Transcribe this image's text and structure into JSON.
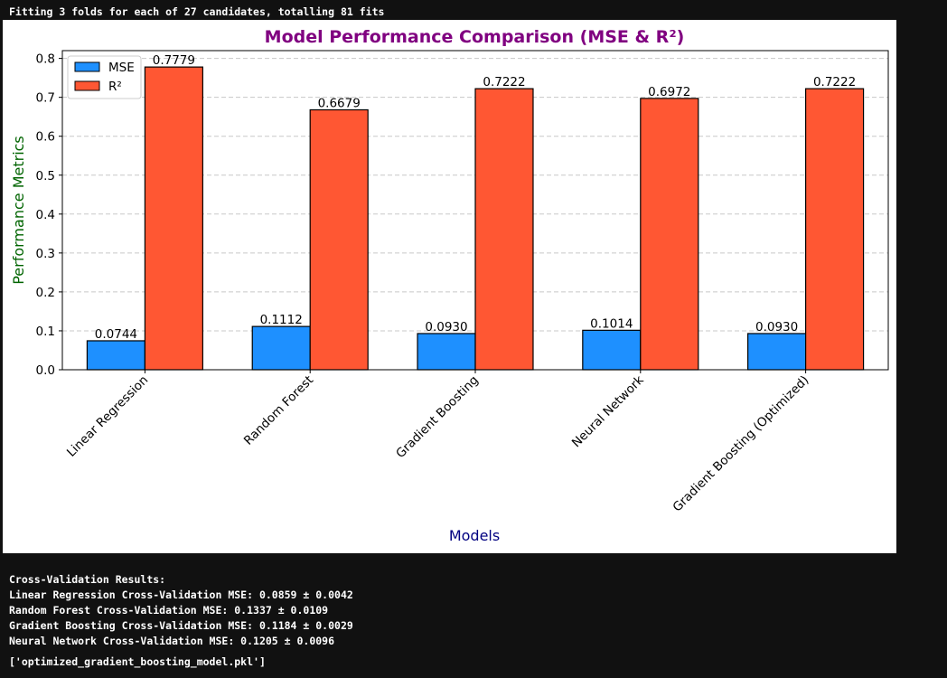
{
  "console": {
    "top_line": "Fitting 3 folds for each of 27 candidates, totalling 81 fits",
    "cv_lines": [
      "Cross-Validation Results:",
      "Linear Regression Cross-Validation MSE: 0.0859 ± 0.0042",
      "Random Forest Cross-Validation MSE: 0.1337 ± 0.0109",
      "Gradient Boosting Cross-Validation MSE: 0.1184 ± 0.0029",
      "Neural Network Cross-Validation MSE: 0.1205 ± 0.0096"
    ],
    "output_line": "['optimized_gradient_boosting_model.pkl']"
  },
  "chart_data": {
    "type": "bar",
    "title": "Model Performance Comparison (MSE & R²)",
    "xlabel": "Models",
    "ylabel": "Performance Metrics",
    "categories": [
      "Linear Regression",
      "Random Forest",
      "Gradient Boosting",
      "Neural Network",
      "Gradient Boosting (Optimized)"
    ],
    "series": [
      {
        "name": "MSE",
        "values": [
          0.0744,
          0.1112,
          0.093,
          0.1014,
          0.093
        ],
        "labels": [
          "0.0744",
          "0.1112",
          "0.0930",
          "0.1014",
          "0.0930"
        ],
        "color": "#1e90ff"
      },
      {
        "name": "R²",
        "values": [
          0.7779,
          0.6679,
          0.7222,
          0.6972,
          0.7222
        ],
        "labels": [
          "0.7779",
          "0.6679",
          "0.7222",
          "0.6972",
          "0.7222"
        ],
        "color": "#ff5733"
      }
    ],
    "ylim": [
      0,
      0.82
    ],
    "yticks": [
      0.0,
      0.1,
      0.2,
      0.3,
      0.4,
      0.5,
      0.6,
      0.7,
      0.8
    ],
    "ytick_labels": [
      "0.0",
      "0.1",
      "0.2",
      "0.3",
      "0.4",
      "0.5",
      "0.6",
      "0.7",
      "0.8"
    ],
    "grid": "y-dashed",
    "legend": "top-left",
    "colors": {
      "title": "#800080",
      "ylabel": "#006400",
      "xlabel": "#000080"
    }
  }
}
